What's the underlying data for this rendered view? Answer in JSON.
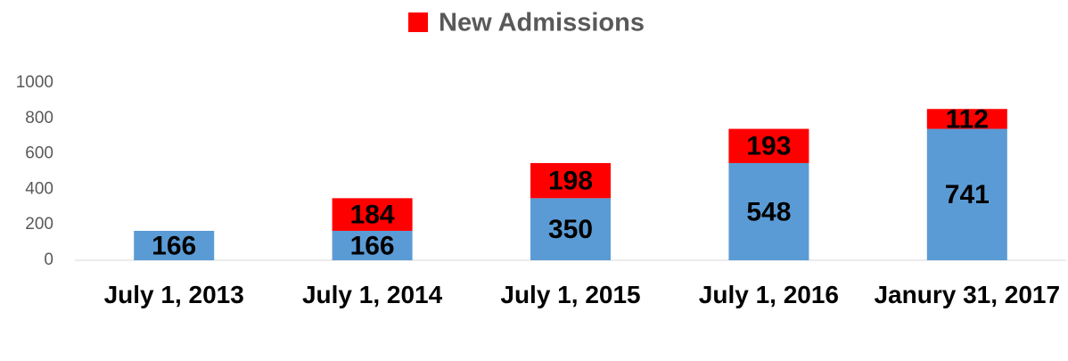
{
  "chart_data": {
    "type": "stacked_bar",
    "categories": [
      "July 1, 2013",
      "July 1, 2014",
      "July 1, 2015",
      "July 1, 2016",
      "Janury 31, 2017"
    ],
    "series": [
      {
        "color": "#5b9bd5",
        "values": [
          166,
          166,
          350,
          548,
          741
        ]
      },
      {
        "name": "New Admissions",
        "color": "#ff0000",
        "values": [
          null,
          184,
          198,
          193,
          112
        ]
      }
    ],
    "ylim": [
      0,
      1000
    ],
    "yticks": [
      0,
      200,
      400,
      600,
      800,
      1000
    ],
    "grid": false,
    "legend": "top"
  }
}
